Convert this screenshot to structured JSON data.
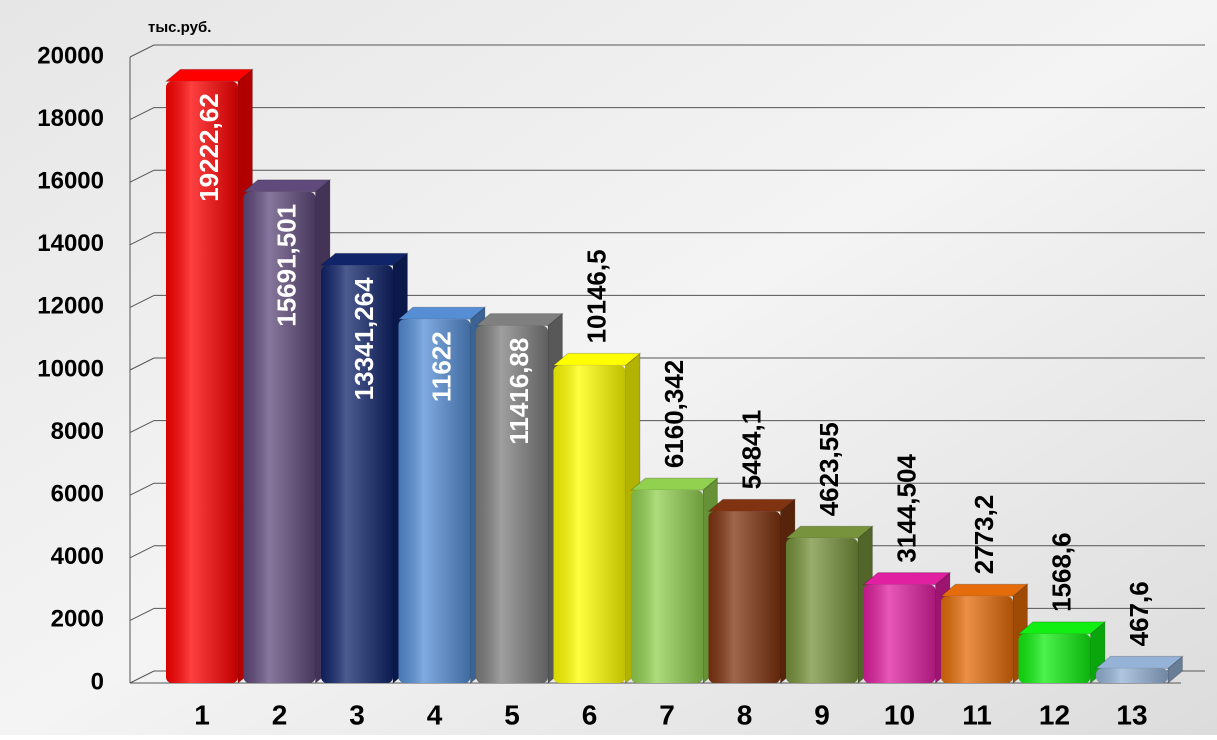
{
  "chart_data": {
    "type": "bar",
    "unit_label": "тыс.руб.",
    "categories": [
      "1",
      "2",
      "3",
      "4",
      "5",
      "6",
      "7",
      "8",
      "9",
      "10",
      "11",
      "12",
      "13"
    ],
    "values": [
      19222.62,
      15691.501,
      13341.264,
      11622,
      11416.88,
      10146.5,
      6160.342,
      5484.1,
      4623.55,
      3144.504,
      2773.2,
      1568.6,
      467.6
    ],
    "value_labels": [
      "19222,62",
      "15691,501",
      "13341,264",
      "11622",
      "11416,88",
      "10146,5",
      "6160,342",
      "5484,1",
      "4623,55",
      "3144,504",
      "2773,2",
      "1568,6",
      "467,6"
    ],
    "colors": [
      "#ff0000",
      "#604a7b",
      "#10246a",
      "#558ed5",
      "#7f7f7f",
      "#ffff00",
      "#92d050",
      "#7f3310",
      "#77933c",
      "#e020a0",
      "#e46c0a",
      "#11ee11",
      "#95b3d7"
    ],
    "ylim": [
      0,
      20000
    ],
    "yticks": [
      0,
      2000,
      4000,
      6000,
      8000,
      10000,
      12000,
      14000,
      16000,
      18000,
      20000
    ],
    "grid": true
  }
}
